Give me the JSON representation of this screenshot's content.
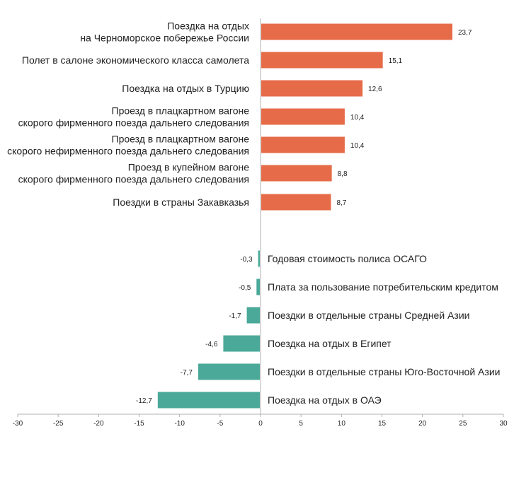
{
  "chart_data": {
    "type": "bar",
    "orientation": "horizontal",
    "title": "",
    "xlabel": "",
    "ylabel": "",
    "xlim": [
      -30,
      30
    ],
    "x_ticks": [
      "-30",
      "-25",
      "-20",
      "-15",
      "-10",
      "-5",
      "0",
      "5",
      "10",
      "15",
      "20",
      "25",
      "30"
    ],
    "grid": false,
    "colors": {
      "positive": "#E66B48",
      "negative": "#4AA998"
    },
    "bars": [
      {
        "label": [
          "Поездка на отдых",
          "на Черноморское побережье России"
        ],
        "value": 23.7,
        "value_label": "23,7"
      },
      {
        "label": [
          "Полет в салоне экономического класса самолета"
        ],
        "value": 15.1,
        "value_label": "15,1"
      },
      {
        "label": [
          "Поездка на отдых в Турцию"
        ],
        "value": 12.6,
        "value_label": "12,6"
      },
      {
        "label": [
          "Проезд в плацкартном вагоне",
          "скорого фирменного поезда дальнего следования"
        ],
        "value": 10.4,
        "value_label": "10,4"
      },
      {
        "label": [
          "Проезд в плацкартном вагоне",
          "скорого нефирменного поезда дальнего следования"
        ],
        "value": 10.4,
        "value_label": "10,4"
      },
      {
        "label": [
          "Проезд в купейном вагоне",
          "скорого фирменного поезда дальнего следования"
        ],
        "value": 8.8,
        "value_label": "8,8"
      },
      {
        "label": [
          "Поездки в страны Закавказья"
        ],
        "value": 8.7,
        "value_label": "8,7"
      },
      {
        "label": [
          "Годовая стоимость полиса ОСАГО"
        ],
        "value": -0.3,
        "value_label": "-0,3"
      },
      {
        "label": [
          "Плата за пользование потребительским кредитом"
        ],
        "value": -0.5,
        "value_label": "-0,5"
      },
      {
        "label": [
          "Поездки в отдельные страны Средней Азии"
        ],
        "value": -1.7,
        "value_label": "-1,7"
      },
      {
        "label": [
          "Поездка на отдых в Египет"
        ],
        "value": -4.6,
        "value_label": "-4,6"
      },
      {
        "label": [
          "Поездки в отдельные страны Юго-Восточной Азии"
        ],
        "value": -7.7,
        "value_label": "-7,7"
      },
      {
        "label": [
          "Поездка на отдых в ОАЭ"
        ],
        "value": -12.7,
        "value_label": "-12,7"
      }
    ]
  }
}
